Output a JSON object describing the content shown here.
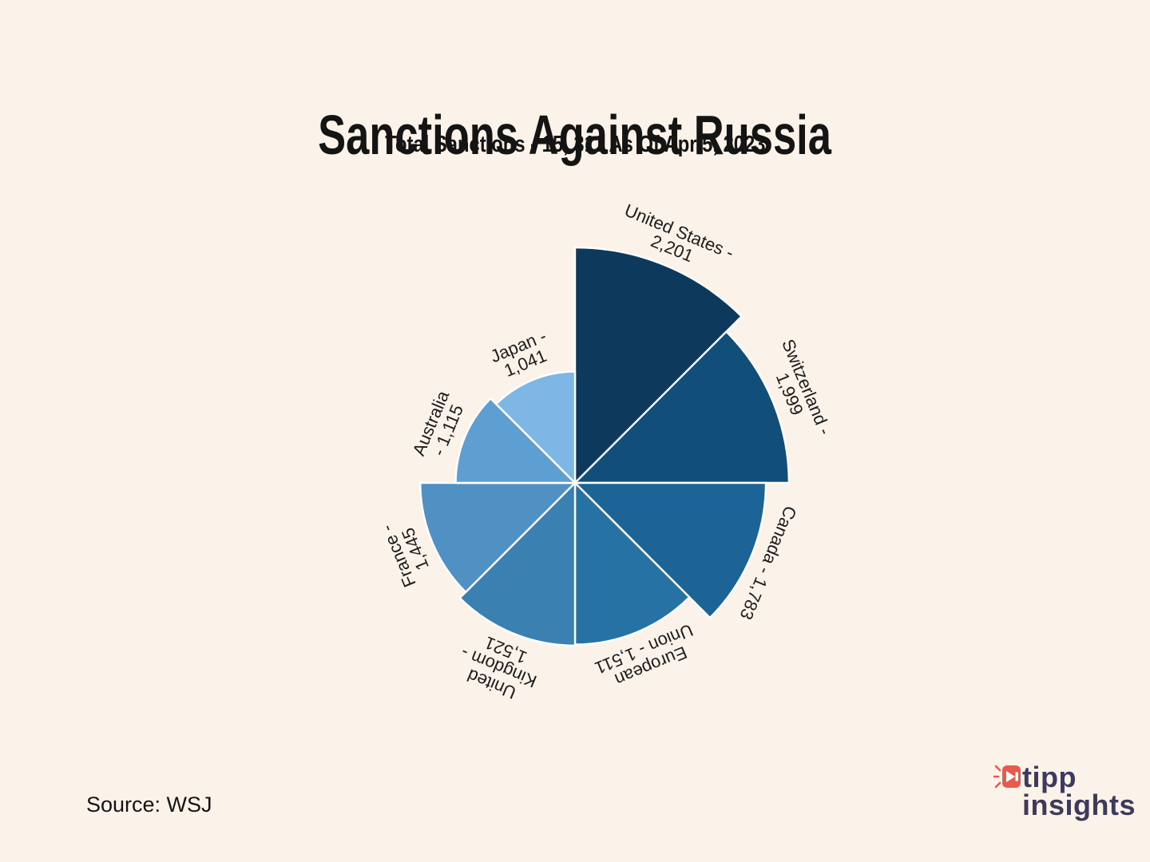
{
  "header": {
    "title": "Sanctions Against Russia",
    "subtitle": "Total Sanctions - 15, 311 As Of Apr 5, 2023"
  },
  "footer": {
    "source": "Source: WSJ"
  },
  "logo": {
    "icon": "megaphone-icon",
    "icon_color": "#e95a4d",
    "text_color": "#3d3a5c",
    "word1": "tipp",
    "word2": "insights"
  },
  "colors": {
    "background": "#fbf2ea",
    "label_text": "#1c1c1c",
    "wedge_separator": "#ffffff"
  },
  "chart_data": {
    "type": "polar-area-rose",
    "title": "Sanctions Against Russia",
    "subtitle": "Total Sanctions - 15, 311 As Of Apr 5, 2023",
    "total_sanctions": "15, 311",
    "as_of_date": "Apr 5, 2023",
    "start_angle_deg": 0,
    "direction": "clockwise",
    "slice_angle_deg": 45,
    "max_value_radius_px": 295,
    "series": [
      {
        "label": "United States",
        "value": 2201,
        "color": "#0d3a5c",
        "label_lines": [
          "United States -",
          "2,201"
        ]
      },
      {
        "label": "Switzerland",
        "value": 1999,
        "color": "#114f7a",
        "label_lines": [
          "Switzerland -",
          "1,999"
        ]
      },
      {
        "label": "Canada",
        "value": 1783,
        "color": "#1c6496",
        "label_lines": [
          "Canada - 1,783"
        ]
      },
      {
        "label": "European Union",
        "value": 1511,
        "color": "#2772a5",
        "label_lines": [
          "European",
          "Union - 1,511"
        ]
      },
      {
        "label": "United Kingdom",
        "value": 1521,
        "color": "#3a80b1",
        "label_lines": [
          "United",
          "Kingdom -",
          "1,521"
        ]
      },
      {
        "label": "France",
        "value": 1445,
        "color": "#5190c3",
        "label_lines": [
          "France -",
          "1,445"
        ]
      },
      {
        "label": "Australia",
        "value": 1115,
        "color": "#5f9ed1",
        "label_lines": [
          "Australia",
          "- 1,115"
        ]
      },
      {
        "label": "Japan",
        "value": 1041,
        "color": "#7eb6e5",
        "label_lines": [
          "Japan -",
          "1,041"
        ]
      }
    ]
  }
}
